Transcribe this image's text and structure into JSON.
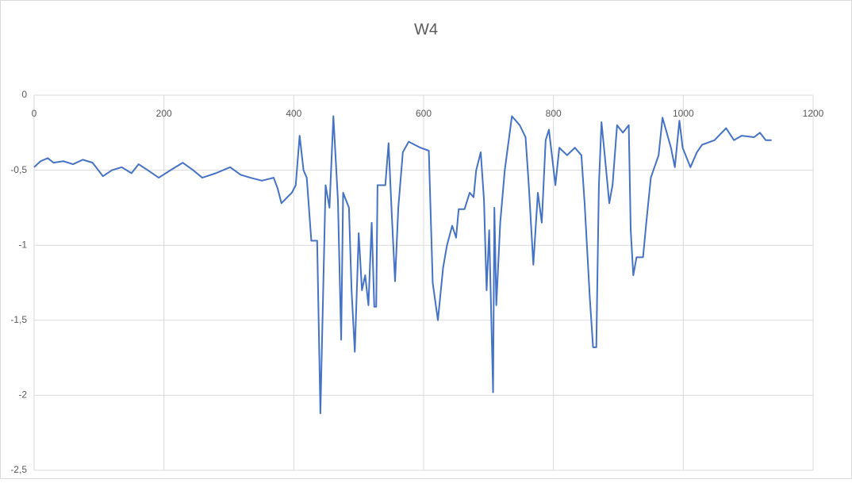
{
  "chart_data": {
    "type": "line",
    "title": "W4",
    "xlim": [
      0,
      1200
    ],
    "xticks": [
      0,
      200,
      400,
      600,
      800,
      1000,
      1200
    ],
    "ylim": [
      -2.5,
      0
    ],
    "yticks": [
      0,
      {
        "value": -0.5,
        "label": "-0,5"
      },
      -1,
      {
        "value": -1.5,
        "label": "-1,5"
      },
      -2,
      {
        "value": -2.5,
        "label": "-2,5"
      }
    ],
    "grid": true,
    "series": [
      {
        "name": "W4",
        "color": "#4472c4",
        "x": [
          0,
          10,
          21,
          30,
          45,
          60,
          75,
          90,
          106,
          120,
          135,
          150,
          161,
          175,
          192,
          210,
          229,
          245,
          259,
          280,
          302,
          318,
          333,
          351,
          369,
          375,
          381,
          390,
          397,
          403,
          409,
          415,
          420,
          427,
          436,
          441,
          449,
          455,
          461,
          468,
          473,
          476,
          485,
          489,
          494,
          500,
          505,
          510,
          515,
          520,
          524,
          527,
          529,
          541,
          546,
          551,
          556,
          561,
          568,
          577,
          595,
          608,
          614,
          622,
          630,
          636,
          644,
          650,
          654,
          663,
          671,
          677,
          681,
          688,
          693,
          697,
          701,
          707,
          709,
          712,
          718,
          725,
          736,
          748,
          757,
          762,
          769,
          776,
          782,
          788,
          793,
          803,
          809,
          821,
          833,
          843,
          848,
          856,
          861,
          866,
          870,
          874,
          879,
          886,
          891,
          898,
          907,
          916,
          919,
          923,
          928,
          938,
          943,
          950,
          962,
          968,
          981,
          987,
          994,
          999,
          1011,
          1021,
          1029,
          1048,
          1066,
          1078,
          1090,
          1109,
          1118,
          1127,
          1136
        ],
        "values": [
          -0.48,
          -0.44,
          -0.42,
          -0.45,
          -0.44,
          -0.46,
          -0.43,
          -0.45,
          -0.54,
          -0.5,
          -0.48,
          -0.52,
          -0.46,
          -0.5,
          -0.55,
          -0.5,
          -0.45,
          -0.5,
          -0.55,
          -0.52,
          -0.48,
          -0.53,
          -0.55,
          -0.57,
          -0.55,
          -0.62,
          -0.72,
          -0.68,
          -0.65,
          -0.6,
          -0.27,
          -0.5,
          -0.55,
          -0.97,
          -0.97,
          -2.12,
          -0.6,
          -0.75,
          -0.14,
          -0.7,
          -1.63,
          -0.65,
          -0.75,
          -1.3,
          -1.71,
          -0.92,
          -1.3,
          -1.2,
          -1.4,
          -0.85,
          -1.41,
          -1.41,
          -0.6,
          -0.6,
          -0.32,
          -0.8,
          -1.24,
          -0.75,
          -0.38,
          -0.31,
          -0.35,
          -0.37,
          -1.25,
          -1.5,
          -1.15,
          -1.0,
          -0.87,
          -0.95,
          -0.76,
          -0.76,
          -0.65,
          -0.68,
          -0.5,
          -0.38,
          -0.7,
          -1.3,
          -0.9,
          -1.98,
          -0.75,
          -1.4,
          -0.85,
          -0.5,
          -0.14,
          -0.2,
          -0.28,
          -0.6,
          -1.13,
          -0.65,
          -0.85,
          -0.3,
          -0.23,
          -0.6,
          -0.35,
          -0.4,
          -0.35,
          -0.4,
          -0.72,
          -1.35,
          -1.68,
          -1.68,
          -0.6,
          -0.18,
          -0.4,
          -0.72,
          -0.6,
          -0.2,
          -0.25,
          -0.2,
          -0.9,
          -1.2,
          -1.08,
          -1.08,
          -0.85,
          -0.55,
          -0.4,
          -0.15,
          -0.35,
          -0.48,
          -0.17,
          -0.35,
          -0.48,
          -0.38,
          -0.33,
          -0.3,
          -0.22,
          -0.3,
          -0.27,
          -0.28,
          -0.25,
          -0.3,
          -0.3
        ]
      }
    ]
  }
}
